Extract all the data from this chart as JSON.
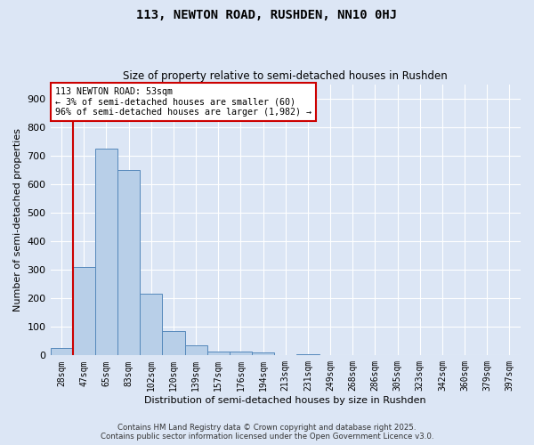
{
  "title1": "113, NEWTON ROAD, RUSHDEN, NN10 0HJ",
  "title2": "Size of property relative to semi-detached houses in Rushden",
  "xlabel": "Distribution of semi-detached houses by size in Rushden",
  "ylabel": "Number of semi-detached properties",
  "bin_labels": [
    "28sqm",
    "47sqm",
    "65sqm",
    "83sqm",
    "102sqm",
    "120sqm",
    "139sqm",
    "157sqm",
    "176sqm",
    "194sqm",
    "213sqm",
    "231sqm",
    "249sqm",
    "268sqm",
    "286sqm",
    "305sqm",
    "323sqm",
    "342sqm",
    "360sqm",
    "379sqm",
    "397sqm"
  ],
  "bar_values": [
    25,
    310,
    725,
    650,
    215,
    85,
    35,
    15,
    15,
    10,
    0,
    5,
    0,
    0,
    0,
    0,
    0,
    0,
    0,
    0,
    0
  ],
  "bar_color": "#b8cfe8",
  "bar_edge_color": "#5588bb",
  "bg_color": "#dce6f5",
  "grid_color": "#ffffff",
  "vline_color": "#cc0000",
  "annotation_text": "113 NEWTON ROAD: 53sqm\n← 3% of semi-detached houses are smaller (60)\n96% of semi-detached houses are larger (1,982) →",
  "annotation_box_color": "#ffffff",
  "annotation_box_edge": "#cc0000",
  "ylim": [
    0,
    950
  ],
  "yticks": [
    0,
    100,
    200,
    300,
    400,
    500,
    600,
    700,
    800,
    900
  ],
  "footer_line1": "Contains HM Land Registry data © Crown copyright and database right 2025.",
  "footer_line2": "Contains public sector information licensed under the Open Government Licence v3.0."
}
